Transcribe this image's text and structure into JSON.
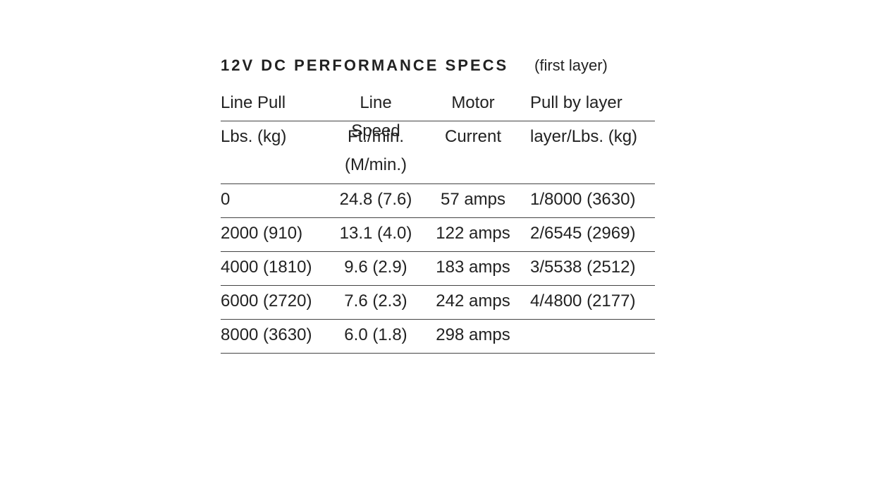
{
  "header": {
    "title": "12V DC PERFORMANCE SPECS",
    "subtitle": "(first layer)"
  },
  "table": {
    "header_rows": [
      [
        "Line Pull",
        "Line Speed",
        "Motor",
        "Pull by layer"
      ],
      [
        "Lbs. (kg)",
        "Ft./min. (M/min.)",
        "Current",
        "layer/Lbs. (kg)"
      ]
    ],
    "rows": [
      [
        "0",
        "24.8 (7.6)",
        "57 amps",
        "1/8000 (3630)"
      ],
      [
        "2000 (910)",
        "13.1 (4.0)",
        "122 amps",
        "2/6545 (2969)"
      ],
      [
        "4000 (1810)",
        "9.6 (2.9)",
        "183 amps",
        "3/5538 (2512)"
      ],
      [
        "6000 (2720)",
        "7.6 (2.3)",
        "242 amps",
        "4/4800 (2177)"
      ],
      [
        "8000 (3630)",
        "6.0 (1.8)",
        "298 amps"
      ]
    ]
  }
}
